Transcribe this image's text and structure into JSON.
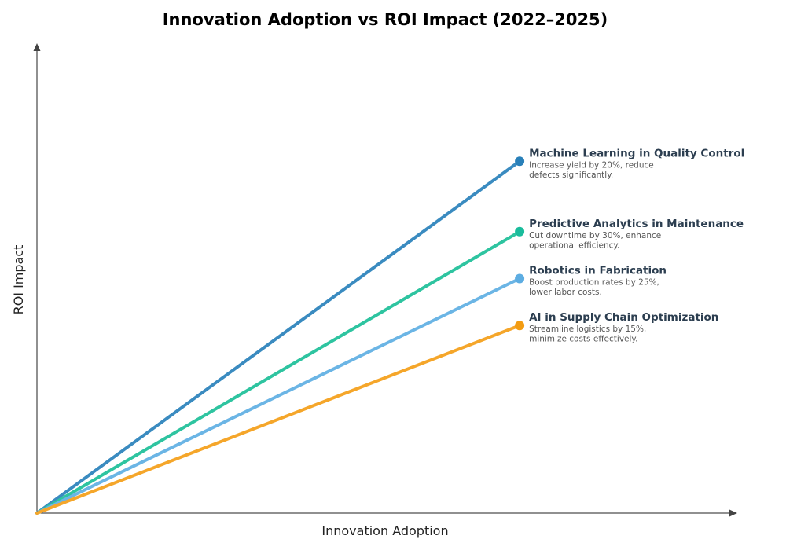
{
  "chart_data": {
    "type": "line",
    "title": "Innovation Adoption vs ROI Impact (2022–2025)",
    "xlabel": "Innovation Adoption",
    "ylabel": "ROI Impact",
    "xlim": [
      0,
      10
    ],
    "ylim": [
      0,
      10
    ],
    "grid": false,
    "ticks": false,
    "series": [
      {
        "name": "Machine Learning in Quality Control",
        "desc": [
          "Increase yield by 20%, reduce",
          "defects significantly."
        ],
        "x": [
          0,
          6.9
        ],
        "y": [
          0,
          7.5
        ],
        "color": "#3a8bc0",
        "dot_color": "#2980b9"
      },
      {
        "name": "Predictive Analytics in Maintenance",
        "desc": [
          "Cut downtime by 30%, enhance",
          "operational efficiency."
        ],
        "x": [
          0,
          6.9
        ],
        "y": [
          0,
          6.0
        ],
        "color": "#2ec4a0",
        "dot_color": "#1abc9c"
      },
      {
        "name": "Robotics in Fabrication",
        "desc": [
          "Boost production rates by 25%,",
          "lower labor costs."
        ],
        "x": [
          0,
          6.9
        ],
        "y": [
          0,
          5.0
        ],
        "color": "#6bb5e5",
        "dot_color": "#5dade2"
      },
      {
        "name": "AI in Supply Chain Optimization",
        "desc": [
          "Streamline logistics by 15%,",
          "minimize costs effectively."
        ],
        "x": [
          0,
          6.9
        ],
        "y": [
          0,
          4.0
        ],
        "color": "#f5a62a",
        "dot_color": "#f39c12"
      }
    ]
  }
}
